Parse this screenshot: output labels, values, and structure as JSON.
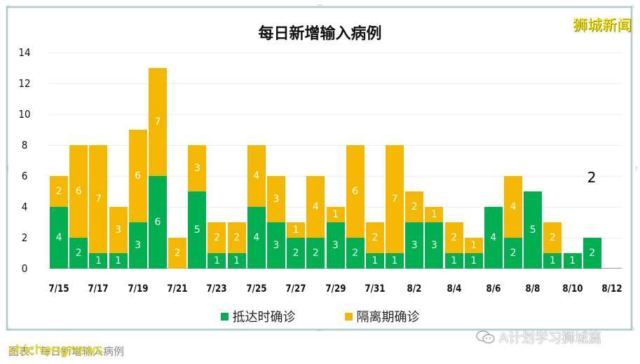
{
  "colors": {
    "arrival": "#00b050",
    "quarantine": "#f5b800",
    "frame": "#b7c9cc",
    "watermark": "#f4e600"
  },
  "watermark_top": "狮城新闻",
  "caption": {
    "overlay": "shichengnews",
    "underlying": "图表：每日新增输入病例"
  },
  "wechat_attribution": {
    "icon": "wechat-icon",
    "text": "A计划学习狮城篇"
  },
  "chart_data": {
    "type": "bar",
    "stacked": true,
    "title": "每日新增输入病例",
    "xlabel": "",
    "ylabel": "",
    "ylim": [
      0,
      14
    ],
    "yticks": [
      0,
      2,
      4,
      6,
      8,
      10,
      12,
      14
    ],
    "grid": true,
    "legend_position": "bottom",
    "categories": [
      "7/15",
      "7/16",
      "7/17",
      "7/18",
      "7/19",
      "7/20",
      "7/21",
      "7/22",
      "7/23",
      "7/24",
      "7/25",
      "7/26",
      "7/27",
      "7/28",
      "7/29",
      "7/30",
      "7/31",
      "8/1",
      "8/2",
      "8/3",
      "8/4",
      "8/5",
      "8/6",
      "8/7",
      "8/8",
      "8/9",
      "8/10",
      "8/11",
      "8/12"
    ],
    "xtick_labels": [
      "7/15",
      "7/17",
      "7/19",
      "7/21",
      "7/23",
      "7/25",
      "7/27",
      "7/29",
      "7/31",
      "8/2",
      "8/4",
      "8/6",
      "8/8",
      "8/10",
      "8/12"
    ],
    "series": [
      {
        "name": "抵达时确诊",
        "color": "#00b050",
        "values": [
          4,
          2,
          1,
          1,
          3,
          6,
          0,
          5,
          1,
          1,
          4,
          3,
          2,
          2,
          3,
          2,
          1,
          1,
          3,
          3,
          1,
          1,
          4,
          2,
          5,
          1,
          1,
          2,
          0
        ]
      },
      {
        "name": "隔离期确诊",
        "color": "#f5b800",
        "values": [
          2,
          6,
          7,
          3,
          6,
          7,
          2,
          3,
          2,
          2,
          4,
          3,
          1,
          4,
          1,
          6,
          2,
          7,
          2,
          1,
          2,
          1,
          0,
          4,
          0,
          2,
          0,
          0,
          0
        ]
      }
    ],
    "annotations": [
      {
        "category": "8/11",
        "text": "2"
      }
    ]
  }
}
